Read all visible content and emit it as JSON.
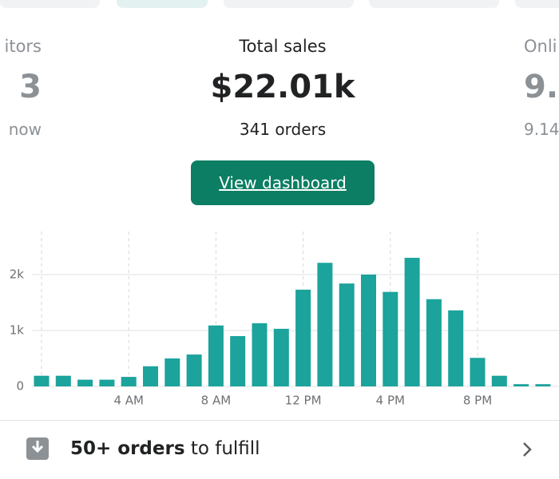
{
  "cards": [
    {
      "label": "itors",
      "value": "3",
      "note": "now"
    },
    {
      "label": "Total sales",
      "value": "$22.01k",
      "note": "341 orders"
    },
    {
      "label": "Onli",
      "value": "9.",
      "note": "9.14"
    }
  ],
  "button": "View dashboard",
  "footer": {
    "bold": "50+ orders",
    "text": "to fulfill"
  },
  "chart_data": {
    "type": "bar",
    "categories": [
      null,
      null,
      null,
      null,
      "4 AM",
      null,
      null,
      null,
      "8 AM",
      null,
      null,
      null,
      "12 PM",
      null,
      null,
      null,
      "4 PM",
      null,
      null,
      null,
      "8 PM",
      null,
      null,
      null
    ],
    "values": [
      190,
      190,
      120,
      120,
      170,
      360,
      500,
      570,
      1090,
      900,
      1130,
      1030,
      1730,
      2210,
      1840,
      2000,
      1690,
      2300,
      1560,
      1360,
      510,
      190,
      40,
      40
    ],
    "color": "#1ba39c",
    "ylim": [
      0,
      2770
    ],
    "yticks": [
      0,
      {
        "value": 1000,
        "label": "1k"
      },
      {
        "value": 2000,
        "label": "2k"
      }
    ],
    "grid": true
  }
}
